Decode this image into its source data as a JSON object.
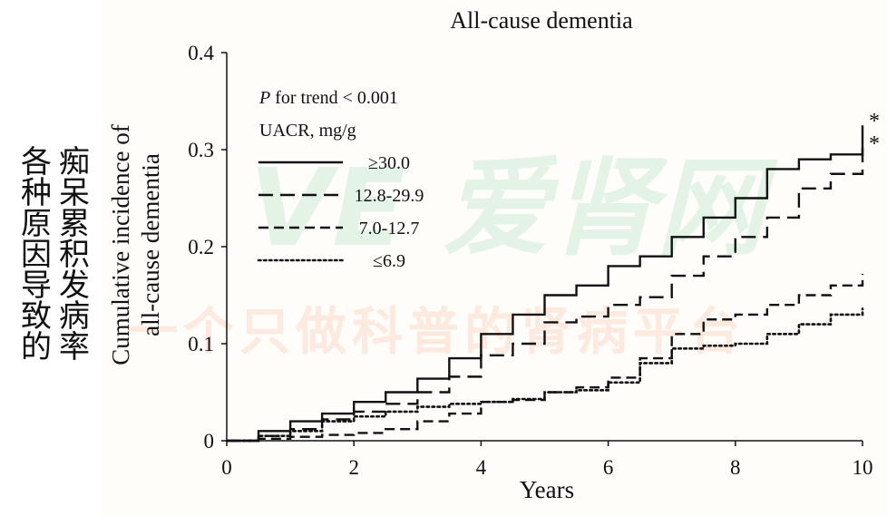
{
  "side_text": {
    "line1": "痴呆累积发病率",
    "line2": "各种原因导致的"
  },
  "watermark": {
    "brand": "VE 爱肾网",
    "slogan": "一个只做科普的肾病平台"
  },
  "colors": {
    "line": "#111111",
    "watermark_green": "#e3f3e6",
    "watermark_orange": "#fde9dd"
  },
  "chart_data": {
    "type": "line",
    "title": "All-cause dementia",
    "xlabel": "Years",
    "ylabel": "Cumulative incidence of all-cause dementia",
    "ylabel_lines": [
      "Cumulative incidence of",
      "all-cause dementia"
    ],
    "xlim": [
      0,
      10
    ],
    "ylim": [
      0,
      0.4
    ],
    "x_ticks": [
      0,
      2,
      4,
      6,
      8,
      10
    ],
    "y_ticks": [
      0,
      0.1,
      0.2,
      0.3,
      0.4
    ],
    "y_tick_labels": [
      "0",
      "0.1",
      "0.2",
      "0.3",
      "0.4"
    ],
    "grid": false,
    "legend_position": "top-left",
    "annotation_trend": "P for trend < 0.001",
    "legend_title": "UACR, mg/g",
    "significance_marks": [
      "*",
      "*"
    ],
    "series": [
      {
        "name": "≥30.0",
        "style": "solid",
        "x": [
          0,
          0.5,
          1,
          1.5,
          2,
          2.5,
          3,
          3.5,
          4,
          4.5,
          5,
          5.5,
          6,
          6.5,
          7,
          7.5,
          8,
          8.5,
          9,
          9.5,
          10
        ],
        "y": [
          0,
          0.01,
          0.02,
          0.028,
          0.04,
          0.05,
          0.064,
          0.085,
          0.11,
          0.13,
          0.15,
          0.16,
          0.18,
          0.19,
          0.21,
          0.23,
          0.25,
          0.28,
          0.29,
          0.295,
          0.325
        ]
      },
      {
        "name": "12.8-29.9",
        "style": "dashed-long",
        "x": [
          0,
          0.5,
          1,
          1.5,
          2,
          2.5,
          3,
          3.5,
          4,
          4.5,
          5,
          5.5,
          6,
          6.5,
          7,
          7.5,
          8,
          8.5,
          9,
          9.5,
          10
        ],
        "y": [
          0,
          0.005,
          0.012,
          0.022,
          0.03,
          0.038,
          0.05,
          0.066,
          0.088,
          0.1,
          0.122,
          0.128,
          0.14,
          0.148,
          0.17,
          0.19,
          0.21,
          0.23,
          0.26,
          0.275,
          0.302
        ]
      },
      {
        "name": "7.0-12.7",
        "style": "dashed",
        "x": [
          0,
          0.5,
          1,
          1.5,
          2,
          2.5,
          3,
          3.5,
          4,
          4.5,
          5,
          5.5,
          6,
          6.5,
          7,
          7.5,
          8,
          8.5,
          9,
          9.5,
          10
        ],
        "y": [
          0,
          0.002,
          0.004,
          0.006,
          0.008,
          0.012,
          0.02,
          0.028,
          0.04,
          0.042,
          0.05,
          0.055,
          0.065,
          0.085,
          0.11,
          0.125,
          0.13,
          0.14,
          0.15,
          0.16,
          0.172
        ]
      },
      {
        "name": "≤6.9",
        "style": "dotted",
        "x": [
          0,
          0.5,
          1,
          1.5,
          2,
          2.5,
          3,
          3.5,
          4,
          4.5,
          5,
          5.5,
          6,
          6.5,
          7,
          7.5,
          8,
          8.5,
          9,
          9.5,
          10
        ],
        "y": [
          0,
          0.005,
          0.01,
          0.02,
          0.025,
          0.03,
          0.035,
          0.038,
          0.04,
          0.043,
          0.05,
          0.052,
          0.06,
          0.08,
          0.095,
          0.098,
          0.1,
          0.11,
          0.12,
          0.13,
          0.136
        ]
      }
    ]
  }
}
